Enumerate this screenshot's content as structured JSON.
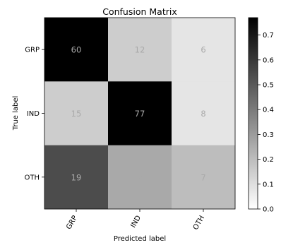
{
  "chart_data": {
    "type": "heatmap",
    "title": "Confusion Matrix",
    "xlabel": "Predicted label",
    "ylabel": "True label",
    "x_categories": [
      "GRP",
      "IND",
      "OTH"
    ],
    "y_categories": [
      "GRP",
      "IND",
      "OTH"
    ],
    "counts": [
      [
        60,
        12,
        6
      ],
      [
        15,
        77,
        8
      ],
      [
        19,
        9,
        7
      ]
    ],
    "normalized_values": [
      [
        0.77,
        0.15,
        0.08
      ],
      [
        0.15,
        0.77,
        0.08
      ],
      [
        0.54,
        0.26,
        0.2
      ]
    ],
    "colormap": "Greys",
    "colorbar": {
      "range": [
        0.0,
        0.77
      ],
      "ticks": [
        "0.0",
        "0.1",
        "0.2",
        "0.3",
        "0.4",
        "0.5",
        "0.6",
        "0.7"
      ]
    },
    "cell_text_color": "#a9a9a9"
  }
}
